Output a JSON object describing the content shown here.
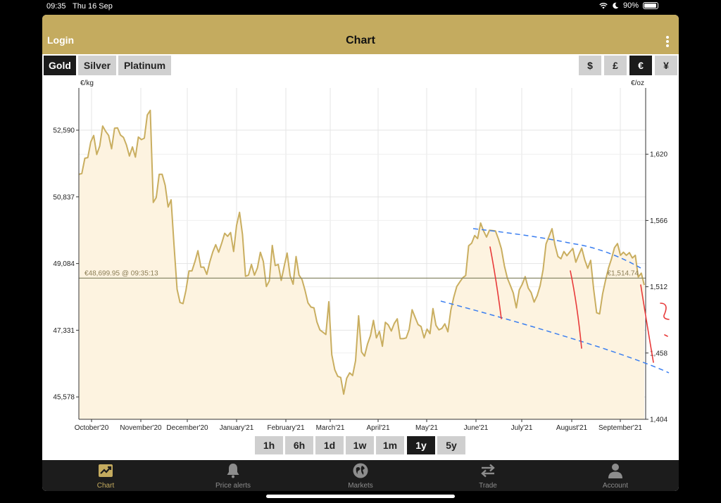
{
  "status": {
    "time": "09:35",
    "date": "Thu 16 Sep",
    "battery": "90%"
  },
  "navbar": {
    "login": "Login",
    "title": "Chart"
  },
  "metals": [
    {
      "label": "Gold",
      "active": true
    },
    {
      "label": "Silver",
      "active": false
    },
    {
      "label": "Platinum",
      "active": false
    }
  ],
  "currencies": [
    {
      "label": "$",
      "active": false
    },
    {
      "label": "£",
      "active": false
    },
    {
      "label": "€",
      "active": true
    },
    {
      "label": "¥",
      "active": false
    }
  ],
  "ranges": [
    {
      "label": "1h",
      "active": false
    },
    {
      "label": "6h",
      "active": false
    },
    {
      "label": "1d",
      "active": false
    },
    {
      "label": "1w",
      "active": false
    },
    {
      "label": "1m",
      "active": false
    },
    {
      "label": "1y",
      "active": true
    },
    {
      "label": "5y",
      "active": false
    }
  ],
  "tabs": [
    {
      "label": "Chart",
      "icon": "chart-icon",
      "active": true
    },
    {
      "label": "Price alerts",
      "icon": "bell-icon",
      "active": false
    },
    {
      "label": "Markets",
      "icon": "globe-icon",
      "active": false
    },
    {
      "label": "Trade",
      "icon": "swap-icon",
      "active": false
    },
    {
      "label": "Account",
      "icon": "person-icon",
      "active": false
    }
  ],
  "chart_data": {
    "type": "area",
    "left_unit": "€/kg",
    "right_unit": "€/oz",
    "left_ylim": [
      44990,
      53700
    ],
    "right_ylim": [
      1404,
      1674
    ],
    "left_ticks": [
      45578,
      47331,
      49084,
      50837,
      52590
    ],
    "left_tick_labels": [
      "45,578",
      "47,331",
      "49,084",
      "50,837",
      "52,590"
    ],
    "right_ticks": [
      1404,
      1458,
      1512,
      1566,
      1620
    ],
    "right_tick_labels": [
      "1,404",
      "1,458",
      "1,512",
      "1,566",
      "1,620"
    ],
    "months": [
      "October'20",
      "November'20",
      "December'20",
      "January'21",
      "February'21",
      "March'21",
      "April'21",
      "May'21",
      "June'21",
      "July'21",
      "August'21",
      "September'21"
    ],
    "current_line": {
      "value": 48700,
      "left_label": "€48,699.95 @ 09:35:13",
      "right_label": "€1,514.74"
    },
    "grid": true,
    "series": [
      {
        "color": "#c9ae60",
        "fill": "#fdf3e0",
        "values": [
          51430,
          51450,
          51850,
          51870,
          52280,
          52450,
          51950,
          52170,
          52700,
          52560,
          52450,
          52100,
          52640,
          52650,
          52460,
          52400,
          52200,
          51910,
          52150,
          51880,
          52410,
          52340,
          52380,
          52990,
          53110,
          50690,
          50820,
          51430,
          51430,
          51140,
          50570,
          50760,
          49560,
          48410,
          48060,
          48030,
          48380,
          48890,
          48890,
          49130,
          49420,
          48990,
          48990,
          48800,
          49130,
          49390,
          49580,
          49380,
          49620,
          49880,
          49800,
          49900,
          49400,
          50090,
          50430,
          49850,
          48750,
          48780,
          49060,
          48780,
          48970,
          49380,
          49140,
          48480,
          48630,
          49560,
          49030,
          49060,
          48640,
          49010,
          49360,
          48760,
          48540,
          49270,
          48780,
          48660,
          48380,
          48050,
          47940,
          47920,
          47550,
          47340,
          47280,
          47220,
          48080,
          46690,
          46290,
          46120,
          46090,
          45650,
          46070,
          46210,
          46140,
          46530,
          47710,
          46760,
          46650,
          46970,
          47190,
          47590,
          47130,
          47300,
          46910,
          47540,
          47470,
          47310,
          47510,
          47630,
          47110,
          47110,
          47130,
          47350,
          47870,
          47670,
          47480,
          47430,
          47130,
          47360,
          47240,
          47900,
          47460,
          47340,
          47380,
          47500,
          47290,
          47860,
          48200,
          48480,
          48600,
          48710,
          48770,
          49550,
          49620,
          49820,
          49740,
          50150,
          49940,
          49780,
          49960,
          49950,
          49940,
          49730,
          49470,
          49020,
          48700,
          48510,
          48310,
          47920,
          48390,
          48540,
          48740,
          48440,
          48320,
          48070,
          48240,
          48500,
          48920,
          49600,
          49800,
          50000,
          49570,
          49270,
          49210,
          49400,
          49290,
          49390,
          49480,
          49120,
          49310,
          49490,
          49180,
          48960,
          49170,
          48400,
          47790,
          47760,
          48280,
          48650,
          48970,
          49210,
          49500,
          49610,
          49300,
          49380,
          49300,
          49370,
          49230,
          49300,
          48730,
          48830,
          48520
        ]
      }
    ],
    "annotations": {
      "red_strokes": 5,
      "blue_dashed_lines": 2
    }
  }
}
